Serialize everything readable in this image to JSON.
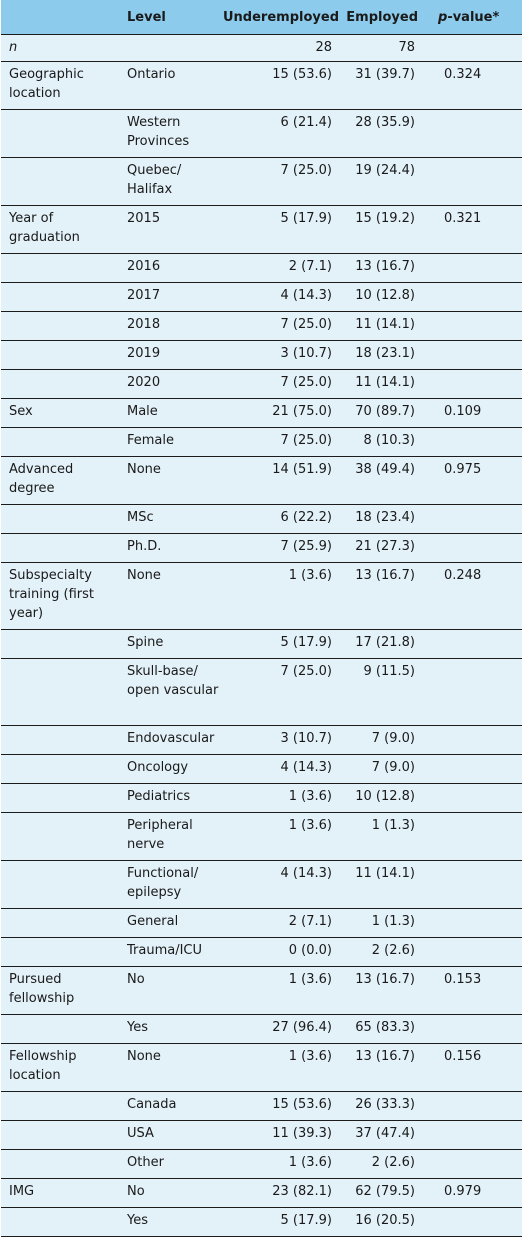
{
  "header": {
    "col1": "",
    "col2": "Level",
    "col3": "Underemployed",
    "col4": "Employed",
    "col5_italic": "p",
    "col5_rest": "-value*"
  },
  "rows": [
    {
      "variable": "n",
      "level": "",
      "under": "28",
      "emp": "78",
      "p": "",
      "h": 27
    },
    {
      "variable": "Geographic location",
      "level": "Ontario",
      "under": "15 (53.6)",
      "emp": "31 (39.7)",
      "p": "0.324",
      "h": 48
    },
    {
      "variable": "",
      "level": "Western Provinces",
      "under": "6 (21.4)",
      "emp": "28 (35.9)",
      "p": "",
      "h": 48
    },
    {
      "variable": "",
      "level": "Quebec/ Halifax",
      "under": "7 (25.0)",
      "emp": "19 (24.4)",
      "p": "",
      "h": 48
    },
    {
      "variable": "Year of graduation",
      "level": "2015",
      "under": "5 (17.9)",
      "emp": "15 (19.2)",
      "p": "0.321",
      "h": 48
    },
    {
      "variable": "",
      "level": "2016",
      "under": "2 (7.1)",
      "emp": "13 (16.7)",
      "p": "",
      "h": 29
    },
    {
      "variable": "",
      "level": "2017",
      "under": "4 (14.3)",
      "emp": "10 (12.8)",
      "p": "",
      "h": 29
    },
    {
      "variable": "",
      "level": "2018",
      "under": "7 (25.0)",
      "emp": "11 (14.1)",
      "p": "",
      "h": 29
    },
    {
      "variable": "",
      "level": "2019",
      "under": "3 (10.7)",
      "emp": "18 (23.1)",
      "p": "",
      "h": 29
    },
    {
      "variable": "",
      "level": "2020",
      "under": "7 (25.0)",
      "emp": "11 (14.1)",
      "p": "",
      "h": 29
    },
    {
      "variable": "Sex",
      "level": "Male",
      "under": "21 (75.0)",
      "emp": "70 (89.7)",
      "p": "0.109",
      "h": 29
    },
    {
      "variable": "",
      "level": "Female",
      "under": "7 (25.0)",
      "emp": "8 (10.3)",
      "p": "",
      "h": 29
    },
    {
      "variable": "Advanced degree",
      "level": "None",
      "under": "14 (51.9)",
      "emp": "38 (49.4)",
      "p": "0.975",
      "h": 48
    },
    {
      "variable": "",
      "level": "MSc",
      "under": "6 (22.2)",
      "emp": "18 (23.4)",
      "p": "",
      "h": 29
    },
    {
      "variable": "",
      "level": "Ph.D.",
      "under": "7 (25.9)",
      "emp": "21 (27.3)",
      "p": "",
      "h": 29
    },
    {
      "variable": "Subspecialty training (first year)",
      "level": "None",
      "under": "1 (3.6)",
      "emp": "13 (16.7)",
      "p": "0.248",
      "h": 67
    },
    {
      "variable": "",
      "level": "Spine",
      "under": "5 (17.9)",
      "emp": "17 (21.8)",
      "p": "",
      "h": 29
    },
    {
      "variable": "",
      "level": "Skull-base/ open vascular",
      "under": "7 (25.0)",
      "emp": "9 (11.5)",
      "p": "",
      "h": 67
    },
    {
      "variable": "",
      "level": "Endovascular",
      "under": "3 (10.7)",
      "emp": "7 (9.0)",
      "p": "",
      "h": 29
    },
    {
      "variable": "",
      "level": "Oncology",
      "under": "4 (14.3)",
      "emp": "7 (9.0)",
      "p": "",
      "h": 29
    },
    {
      "variable": "",
      "level": "Pediatrics",
      "under": "1 (3.6)",
      "emp": "10 (12.8)",
      "p": "",
      "h": 29
    },
    {
      "variable": "",
      "level": "Peripheral nerve",
      "under": "1 (3.6)",
      "emp": "1 (1.3)",
      "p": "",
      "h": 48
    },
    {
      "variable": "",
      "level": "Functional/ epilepsy",
      "under": "4 (14.3)",
      "emp": "11 (14.1)",
      "p": "",
      "h": 48
    },
    {
      "variable": "",
      "level": "General",
      "under": "2 (7.1)",
      "emp": "1 (1.3)",
      "p": "",
      "h": 29
    },
    {
      "variable": "",
      "level": "Trauma/ICU",
      "under": "0 (0.0)",
      "emp": "2 (2.6)",
      "p": "",
      "h": 29
    },
    {
      "variable": "Pursued fellowship",
      "level": "No",
      "under": "1 (3.6)",
      "emp": "13 (16.7)",
      "p": "0.153",
      "h": 48
    },
    {
      "variable": "",
      "level": "Yes",
      "under": "27 (96.4)",
      "emp": "65 (83.3)",
      "p": "",
      "h": 29
    },
    {
      "variable": "Fellowship location",
      "level": "None",
      "under": "1 (3.6)",
      "emp": "13 (16.7)",
      "p": "0.156",
      "h": 48
    },
    {
      "variable": "",
      "level": "Canada",
      "under": "15 (53.6)",
      "emp": "26 (33.3)",
      "p": "",
      "h": 29
    },
    {
      "variable": "",
      "level": "USA",
      "under": "11 (39.3)",
      "emp": "37 (47.4)",
      "p": "",
      "h": 29
    },
    {
      "variable": "",
      "level": "Other",
      "under": "1 (3.6)",
      "emp": "2 (2.6)",
      "p": "",
      "h": 29
    },
    {
      "variable": "IMG",
      "level": "No",
      "under": "23 (82.1)",
      "emp": "62 (79.5)",
      "p": "0.979",
      "h": 29
    },
    {
      "variable": "",
      "level": "Yes",
      "under": "5 (17.9)",
      "emp": "16 (20.5)",
      "p": "",
      "h": 29
    }
  ]
}
